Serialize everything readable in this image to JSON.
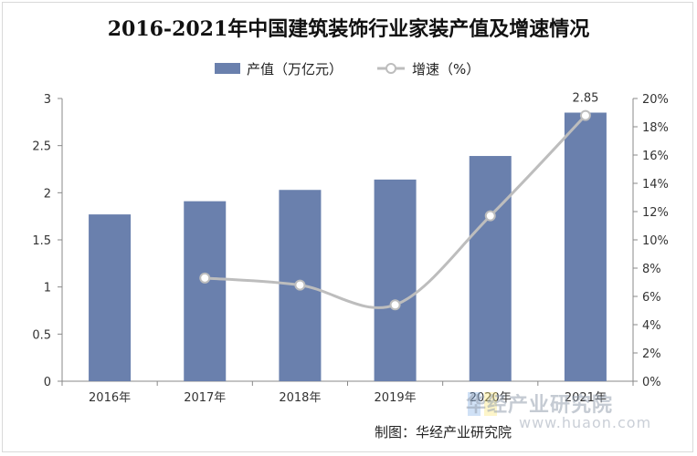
{
  "title": "2016-2021年中国建筑装饰行业家装产值及增速情况",
  "source": "制图：华经产业研究院",
  "watermark": {
    "text": "华经产业研究院",
    "url": "www.huaon.com"
  },
  "legend": {
    "bar_label": "产值（万亿元）",
    "line_label": "增速（%）",
    "position": "top"
  },
  "colors": {
    "bar": "#6a80ad",
    "line": "#bdbdbd",
    "axis": "#888888"
  },
  "chart_data": {
    "type": "bar",
    "categories": [
      "2016年",
      "2017年",
      "2018年",
      "2019年",
      "2020年",
      "2021年"
    ],
    "series": [
      {
        "name": "产值（万亿元）",
        "type": "bar",
        "axis": "left",
        "values": [
          1.77,
          1.91,
          2.03,
          2.14,
          2.39,
          2.85
        ]
      },
      {
        "name": "增速（%）",
        "type": "line",
        "axis": "right",
        "smooth": true,
        "values": [
          null,
          7.3,
          6.8,
          5.4,
          11.7,
          18.8
        ]
      }
    ],
    "data_labels": [
      {
        "series": 0,
        "index": 5,
        "text": "2.85"
      }
    ],
    "y_left": {
      "lim": [
        0,
        3
      ],
      "ticks": [
        "0",
        "0.5",
        "1",
        "1.5",
        "2",
        "2.5",
        "3"
      ]
    },
    "y_right": {
      "lim": [
        0,
        20
      ],
      "ticks": [
        "0%",
        "2%",
        "4%",
        "6%",
        "8%",
        "10%",
        "12%",
        "14%",
        "16%",
        "18%",
        "20%"
      ]
    },
    "grid": false
  }
}
